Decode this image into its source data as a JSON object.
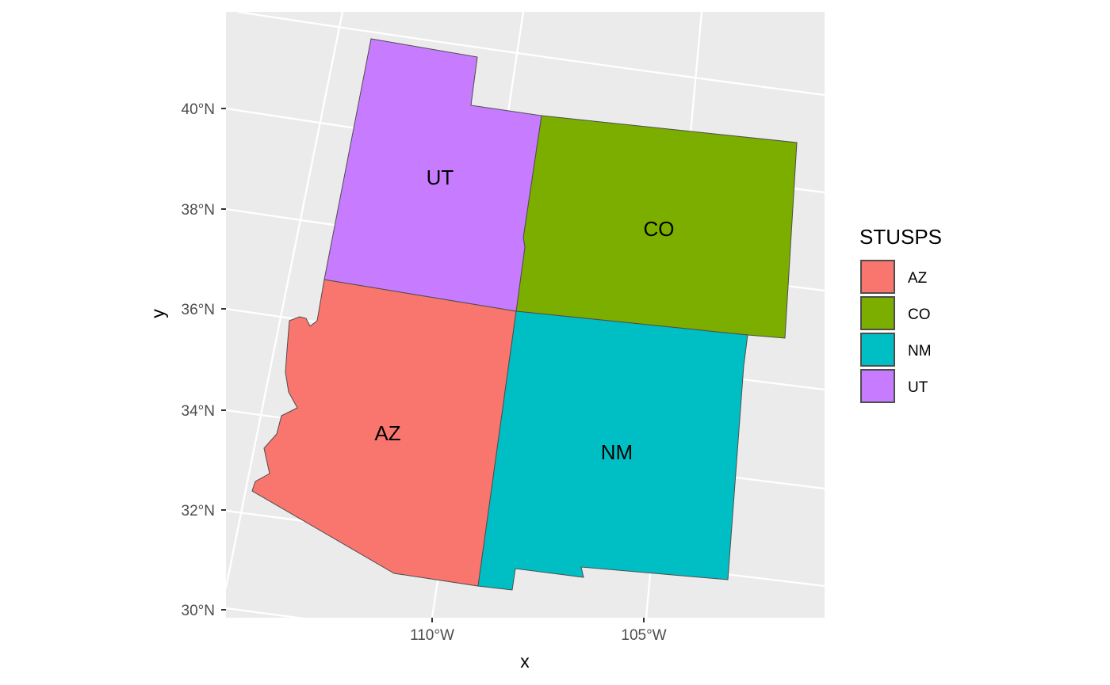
{
  "map": {
    "x_axis_title": "x",
    "y_axis_title": "y",
    "lat_ticks": [
      "40°N",
      "38°N",
      "36°N",
      "34°N",
      "32°N",
      "30°N"
    ],
    "lon_ticks": [
      "110°W",
      "105°W"
    ],
    "panel_background": "#ebebeb",
    "grid_color": "#ffffff"
  },
  "states": [
    {
      "code": "AZ",
      "fill": "#f8766d"
    },
    {
      "code": "CO",
      "fill": "#7cae00"
    },
    {
      "code": "NM",
      "fill": "#00bfc4"
    },
    {
      "code": "UT",
      "fill": "#c77cff"
    }
  ],
  "legend": {
    "title": "STUSPS",
    "items": [
      {
        "label": "AZ",
        "color": "#f8766d"
      },
      {
        "label": "CO",
        "color": "#7cae00"
      },
      {
        "label": "NM",
        "color": "#00bfc4"
      },
      {
        "label": "UT",
        "color": "#c77cff"
      }
    ]
  }
}
